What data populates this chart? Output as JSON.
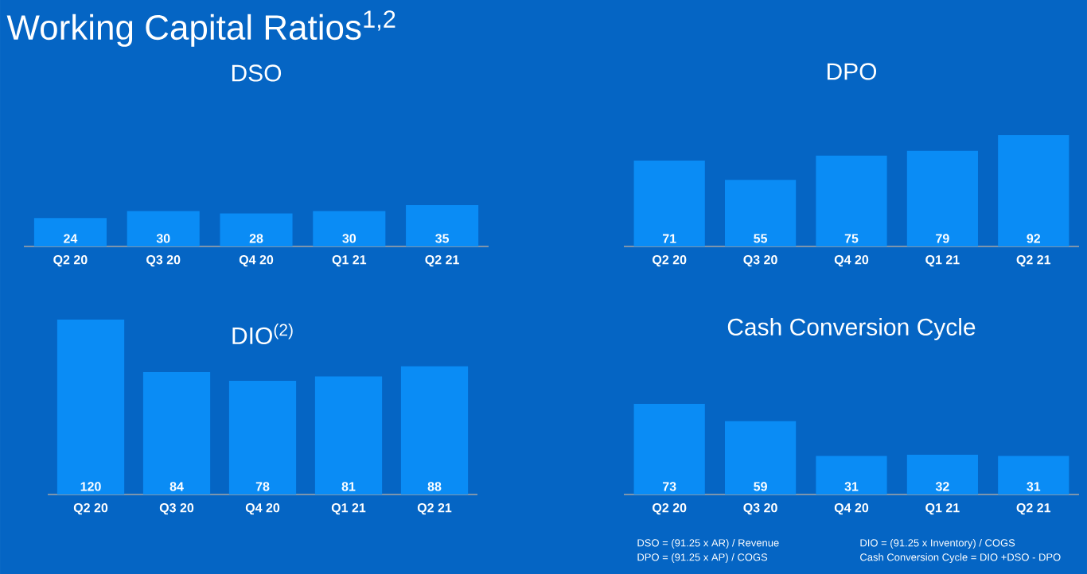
{
  "chart_data": [
    {
      "type": "bar",
      "title": "DSO",
      "categories": [
        "Q2 20",
        "Q3 20",
        "Q4 20",
        "Q1 21",
        "Q2 21"
      ],
      "values": [
        24,
        30,
        28,
        30,
        35
      ],
      "color": "#0a8cf5",
      "data_labels": true,
      "annotations": [
        "Working Capital Ratios$^{1,2}$"
      ]
    },
    {
      "type": "bar",
      "title": "DPO",
      "categories": [
        "Q2 20",
        "Q3 20",
        "Q4 20",
        "Q1 21",
        "Q2 21"
      ],
      "values": [
        71,
        55,
        75,
        79,
        92
      ],
      "color": "#0a8cf5",
      "data_labels": true
    },
    {
      "type": "bar",
      "title": "DIO$^{(2)}$",
      "categories": [
        "Q2 20",
        "Q3 20",
        "Q4 20",
        "Q1 21",
        "Q2 21"
      ],
      "values": [
        120,
        84,
        78,
        81,
        88
      ],
      "color": "#0a8cf5",
      "data_labels": true
    },
    {
      "type": "bar",
      "title": "Cash Conversion Cycle",
      "categories": [
        "Q2 20",
        "Q3 20",
        "Q4 20",
        "Q1 21",
        "Q2 21"
      ],
      "values": [
        73,
        59,
        31,
        32,
        31
      ],
      "color": "#0a8cf5",
      "data_labels": true,
      "annotations": [
        "DSO = (91.25 x AR) / Revenue",
        "DPO = (91.25 x AP) / COGS",
        "DIO = (91.25 x Inventory) / COGS",
        "Cash Conversion Cycle =  DIO +DSO - DPO"
      ]
    }
  ]
}
